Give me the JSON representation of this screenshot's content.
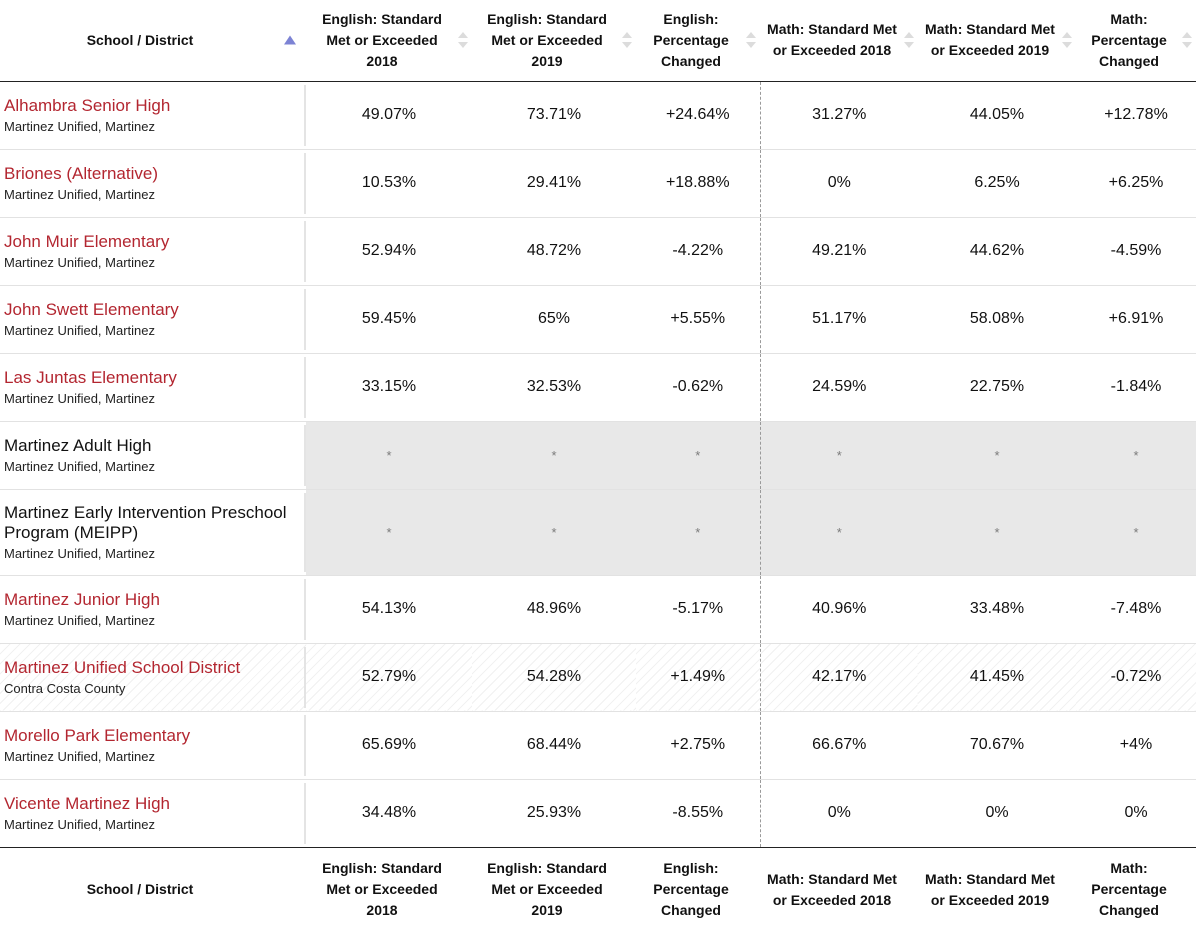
{
  "columns": [
    {
      "label": "School / District"
    },
    {
      "label": "English: Standard Met or Exceeded 2018"
    },
    {
      "label": "English: Standard Met or Exceeded 2019"
    },
    {
      "label": "English: Percentage Changed"
    },
    {
      "label": "Math: Standard Met or Exceeded 2018"
    },
    {
      "label": "Math: Standard Met or Exceeded 2019"
    },
    {
      "label": "Math: Percentage Changed"
    }
  ],
  "sort": {
    "column": "School / District",
    "direction": "ascending",
    "active_color": "#7c83d4"
  },
  "colors": {
    "school_link": "#b32630",
    "no_data_background": "#e8e8e8",
    "row_divider": "#e2e2e2",
    "header_rule": "#222222"
  },
  "rows": [
    {
      "name": "Alhambra Senior High",
      "location": "Martinez Unified, Martinez",
      "values": [
        "49.07%",
        "73.71%",
        "+24.64%",
        "31.27%",
        "44.05%",
        "+12.78%"
      ]
    },
    {
      "name": "Briones (Alternative)",
      "location": "Martinez Unified, Martinez",
      "values": [
        "10.53%",
        "29.41%",
        "+18.88%",
        "0%",
        "6.25%",
        "+6.25%"
      ]
    },
    {
      "name": "John Muir Elementary",
      "location": "Martinez Unified, Martinez",
      "values": [
        "52.94%",
        "48.72%",
        "-4.22%",
        "49.21%",
        "44.62%",
        "-4.59%"
      ]
    },
    {
      "name": "John Swett Elementary",
      "location": "Martinez Unified, Martinez",
      "values": [
        "59.45%",
        "65%",
        "+5.55%",
        "51.17%",
        "58.08%",
        "+6.91%"
      ]
    },
    {
      "name": "Las Juntas Elementary",
      "location": "Martinez Unified, Martinez",
      "values": [
        "33.15%",
        "32.53%",
        "-0.62%",
        "24.59%",
        "22.75%",
        "-1.84%"
      ]
    },
    {
      "name": "Martinez Adult High",
      "location": "Martinez Unified, Martinez",
      "values": [
        "*",
        "*",
        "*",
        "*",
        "*",
        "*"
      ]
    },
    {
      "name": "Martinez Early Intervention Preschool Program (MEIPP)",
      "location": "Martinez Unified, Martinez",
      "values": [
        "*",
        "*",
        "*",
        "*",
        "*",
        "*"
      ]
    },
    {
      "name": "Martinez Junior High",
      "location": "Martinez Unified, Martinez",
      "values": [
        "54.13%",
        "48.96%",
        "-5.17%",
        "40.96%",
        "33.48%",
        "-7.48%"
      ]
    },
    {
      "name": "Martinez Unified School District",
      "location": "Contra Costa County",
      "values": [
        "52.79%",
        "54.28%",
        "+1.49%",
        "42.17%",
        "41.45%",
        "-0.72%"
      ]
    },
    {
      "name": "Morello Park Elementary",
      "location": "Martinez Unified, Martinez",
      "values": [
        "65.69%",
        "68.44%",
        "+2.75%",
        "66.67%",
        "70.67%",
        "+4%"
      ]
    },
    {
      "name": "Vicente Martinez High",
      "location": "Martinez Unified, Martinez",
      "values": [
        "34.48%",
        "25.93%",
        "-8.55%",
        "0%",
        "0%",
        "0%"
      ]
    }
  ]
}
